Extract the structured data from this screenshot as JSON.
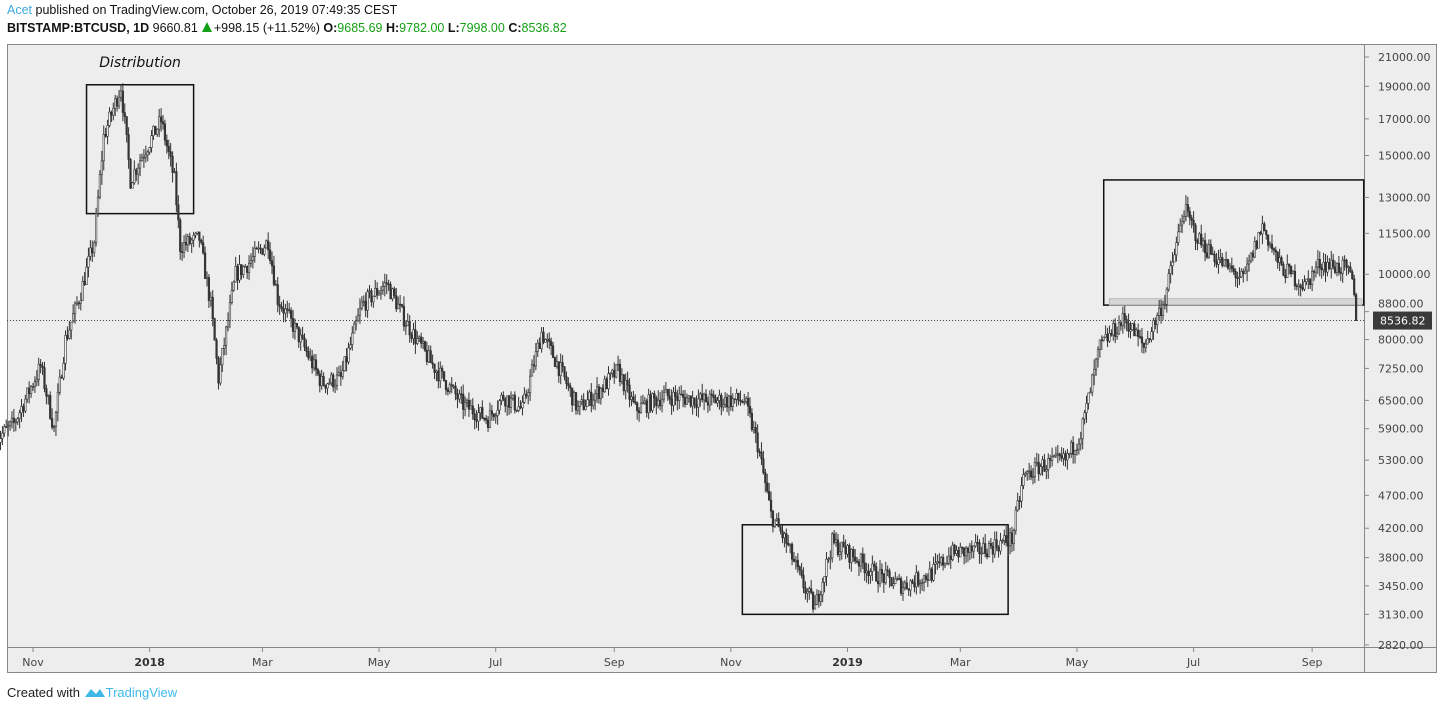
{
  "header": {
    "author": "Acet",
    "published_text": "published on TradingView.com, October 26, 2019 07:49:35 CEST",
    "symbol": "BITSTAMP:BTCUSD, 1D",
    "last": "9660.81",
    "change": "+998.15 (+11.52%)",
    "o_label": "O:",
    "o": "9685.69",
    "h_label": "H:",
    "h": "9782.00",
    "l_label": "L:",
    "l": "7998.00",
    "c_label": "C:",
    "c": "8536.82",
    "up_color": "#14a014"
  },
  "footer": {
    "created_with": "Created with",
    "brand": "TradingView"
  },
  "chart_data": {
    "type": "line",
    "title": "BITSTAMP:BTCUSD, 1D",
    "scale": "log",
    "ylim": [
      2820,
      21000
    ],
    "y_ticks": [
      "21000.00",
      "19000.00",
      "17000.00",
      "15000.00",
      "13000.00",
      "11500.00",
      "10000.00",
      "8800.00",
      "8000.00",
      "7250.00",
      "6500.00",
      "5900.00",
      "5300.00",
      "4700.00",
      "4200.00",
      "3800.00",
      "3450.00",
      "3130.00",
      "2820.00"
    ],
    "x_ticks": [
      {
        "date": "2017-11-01",
        "label": "Nov",
        "bold": false
      },
      {
        "date": "2018-01-01",
        "label": "2018",
        "bold": true
      },
      {
        "date": "2018-03-01",
        "label": "Mar",
        "bold": false
      },
      {
        "date": "2018-05-01",
        "label": "May",
        "bold": false
      },
      {
        "date": "2018-07-01",
        "label": "Jul",
        "bold": false
      },
      {
        "date": "2018-09-01",
        "label": "Sep",
        "bold": false
      },
      {
        "date": "2018-11-01",
        "label": "Nov",
        "bold": false
      },
      {
        "date": "2019-01-01",
        "label": "2019",
        "bold": true
      },
      {
        "date": "2019-03-01",
        "label": "Mar",
        "bold": false
      },
      {
        "date": "2019-05-01",
        "label": "May",
        "bold": false
      },
      {
        "date": "2019-07-01",
        "label": "Jul",
        "bold": false
      },
      {
        "date": "2019-09-01",
        "label": "Sep",
        "bold": false
      }
    ],
    "series": [
      {
        "name": "BTCUSD close",
        "points": [
          [
            "2017-10-13",
            5700
          ],
          [
            "2017-10-22",
            6000
          ],
          [
            "2017-11-05",
            7300
          ],
          [
            "2017-11-12",
            5900
          ],
          [
            "2017-11-18",
            8000
          ],
          [
            "2017-11-26",
            9400
          ],
          [
            "2017-12-03",
            11200
          ],
          [
            "2017-12-08",
            16000
          ],
          [
            "2017-12-17",
            19000
          ],
          [
            "2017-12-22",
            13800
          ],
          [
            "2017-12-27",
            14800
          ],
          [
            "2018-01-07",
            16900
          ],
          [
            "2018-01-14",
            13800
          ],
          [
            "2018-01-17",
            11000
          ],
          [
            "2018-01-27",
            11300
          ],
          [
            "2018-02-02",
            9000
          ],
          [
            "2018-02-06",
            7000
          ],
          [
            "2018-02-15",
            10000
          ],
          [
            "2018-02-22",
            10400
          ],
          [
            "2018-03-04",
            11200
          ],
          [
            "2018-03-09",
            9200
          ],
          [
            "2018-03-18",
            8300
          ],
          [
            "2018-04-01",
            6900
          ],
          [
            "2018-04-11",
            7000
          ],
          [
            "2018-04-22",
            9000
          ],
          [
            "2018-05-05",
            9700
          ],
          [
            "2018-05-15",
            8500
          ],
          [
            "2018-05-28",
            7400
          ],
          [
            "2018-06-14",
            6400
          ],
          [
            "2018-06-27",
            6100
          ],
          [
            "2018-07-05",
            6600
          ],
          [
            "2018-07-15",
            6300
          ],
          [
            "2018-07-25",
            8200
          ],
          [
            "2018-08-05",
            7100
          ],
          [
            "2018-08-13",
            6300
          ],
          [
            "2018-08-26",
            6800
          ],
          [
            "2018-09-03",
            7200
          ],
          [
            "2018-09-12",
            6300
          ],
          [
            "2018-09-27",
            6600
          ],
          [
            "2018-10-18",
            6500
          ],
          [
            "2018-11-08",
            6500
          ],
          [
            "2018-11-15",
            5600
          ],
          [
            "2018-11-22",
            4400
          ],
          [
            "2018-11-30",
            4000
          ],
          [
            "2018-12-08",
            3500
          ],
          [
            "2018-12-15",
            3200
          ],
          [
            "2018-12-24",
            4000
          ],
          [
            "2019-01-05",
            3800
          ],
          [
            "2019-01-15",
            3600
          ],
          [
            "2019-01-30",
            3450
          ],
          [
            "2019-02-14",
            3600
          ],
          [
            "2019-02-24",
            3850
          ],
          [
            "2019-03-12",
            3900
          ],
          [
            "2019-03-28",
            4050
          ],
          [
            "2019-04-03",
            5000
          ],
          [
            "2019-04-12",
            5200
          ],
          [
            "2019-04-25",
            5300
          ],
          [
            "2019-05-03",
            5800
          ],
          [
            "2019-05-13",
            7800
          ],
          [
            "2019-05-26",
            8600
          ],
          [
            "2019-06-05",
            7800
          ],
          [
            "2019-06-16",
            9200
          ],
          [
            "2019-06-26",
            12500
          ],
          [
            "2019-07-04",
            11200
          ],
          [
            "2019-07-14",
            10500
          ],
          [
            "2019-07-27",
            9800
          ],
          [
            "2019-08-06",
            11800
          ],
          [
            "2019-08-15",
            10300
          ],
          [
            "2019-08-28",
            9600
          ],
          [
            "2019-09-05",
            10400
          ],
          [
            "2019-09-18",
            10200
          ],
          [
            "2019-09-22",
            9800
          ],
          [
            "2019-09-24",
            8536.82
          ]
        ]
      }
    ],
    "last_price": {
      "value": 8536.82,
      "label": "8536.82"
    },
    "annotations": [
      {
        "type": "box",
        "name": "distribution-box",
        "from": "2017-11-29",
        "to": "2018-01-24",
        "low": 12300,
        "high": 19100,
        "label": "Distribution"
      },
      {
        "type": "box",
        "name": "accumulation-box",
        "from": "2018-11-07",
        "to": "2019-03-26",
        "low": 3130,
        "high": 4250
      },
      {
        "type": "box",
        "name": "redistribution-box",
        "from": "2019-05-15",
        "to": "2019-09-28",
        "low": 9000,
        "high": 13800
      },
      {
        "type": "band",
        "name": "support-band",
        "from": "2019-05-18",
        "to": "2019-09-27",
        "low": 9000,
        "high": 9200
      }
    ]
  }
}
